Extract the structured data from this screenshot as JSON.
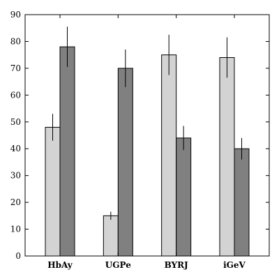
{
  "chart_data": {
    "type": "bar",
    "categories": [
      "HbAy",
      "UGPe",
      "BYRJ",
      "iGeV"
    ],
    "series": [
      {
        "values": [
          48,
          15,
          75,
          74
        ],
        "errors": [
          5,
          1.5,
          7.5,
          7.5
        ],
        "color": "#d3d3d3"
      },
      {
        "values": [
          78,
          70,
          44,
          40
        ],
        "errors": [
          7.5,
          7,
          4.5,
          4
        ],
        "color": "#808080"
      }
    ],
    "ylim": [
      0,
      90
    ],
    "yticks": [
      0,
      10,
      20,
      30,
      40,
      50,
      60,
      70,
      80,
      90
    ],
    "grid": false,
    "legend": "none"
  }
}
